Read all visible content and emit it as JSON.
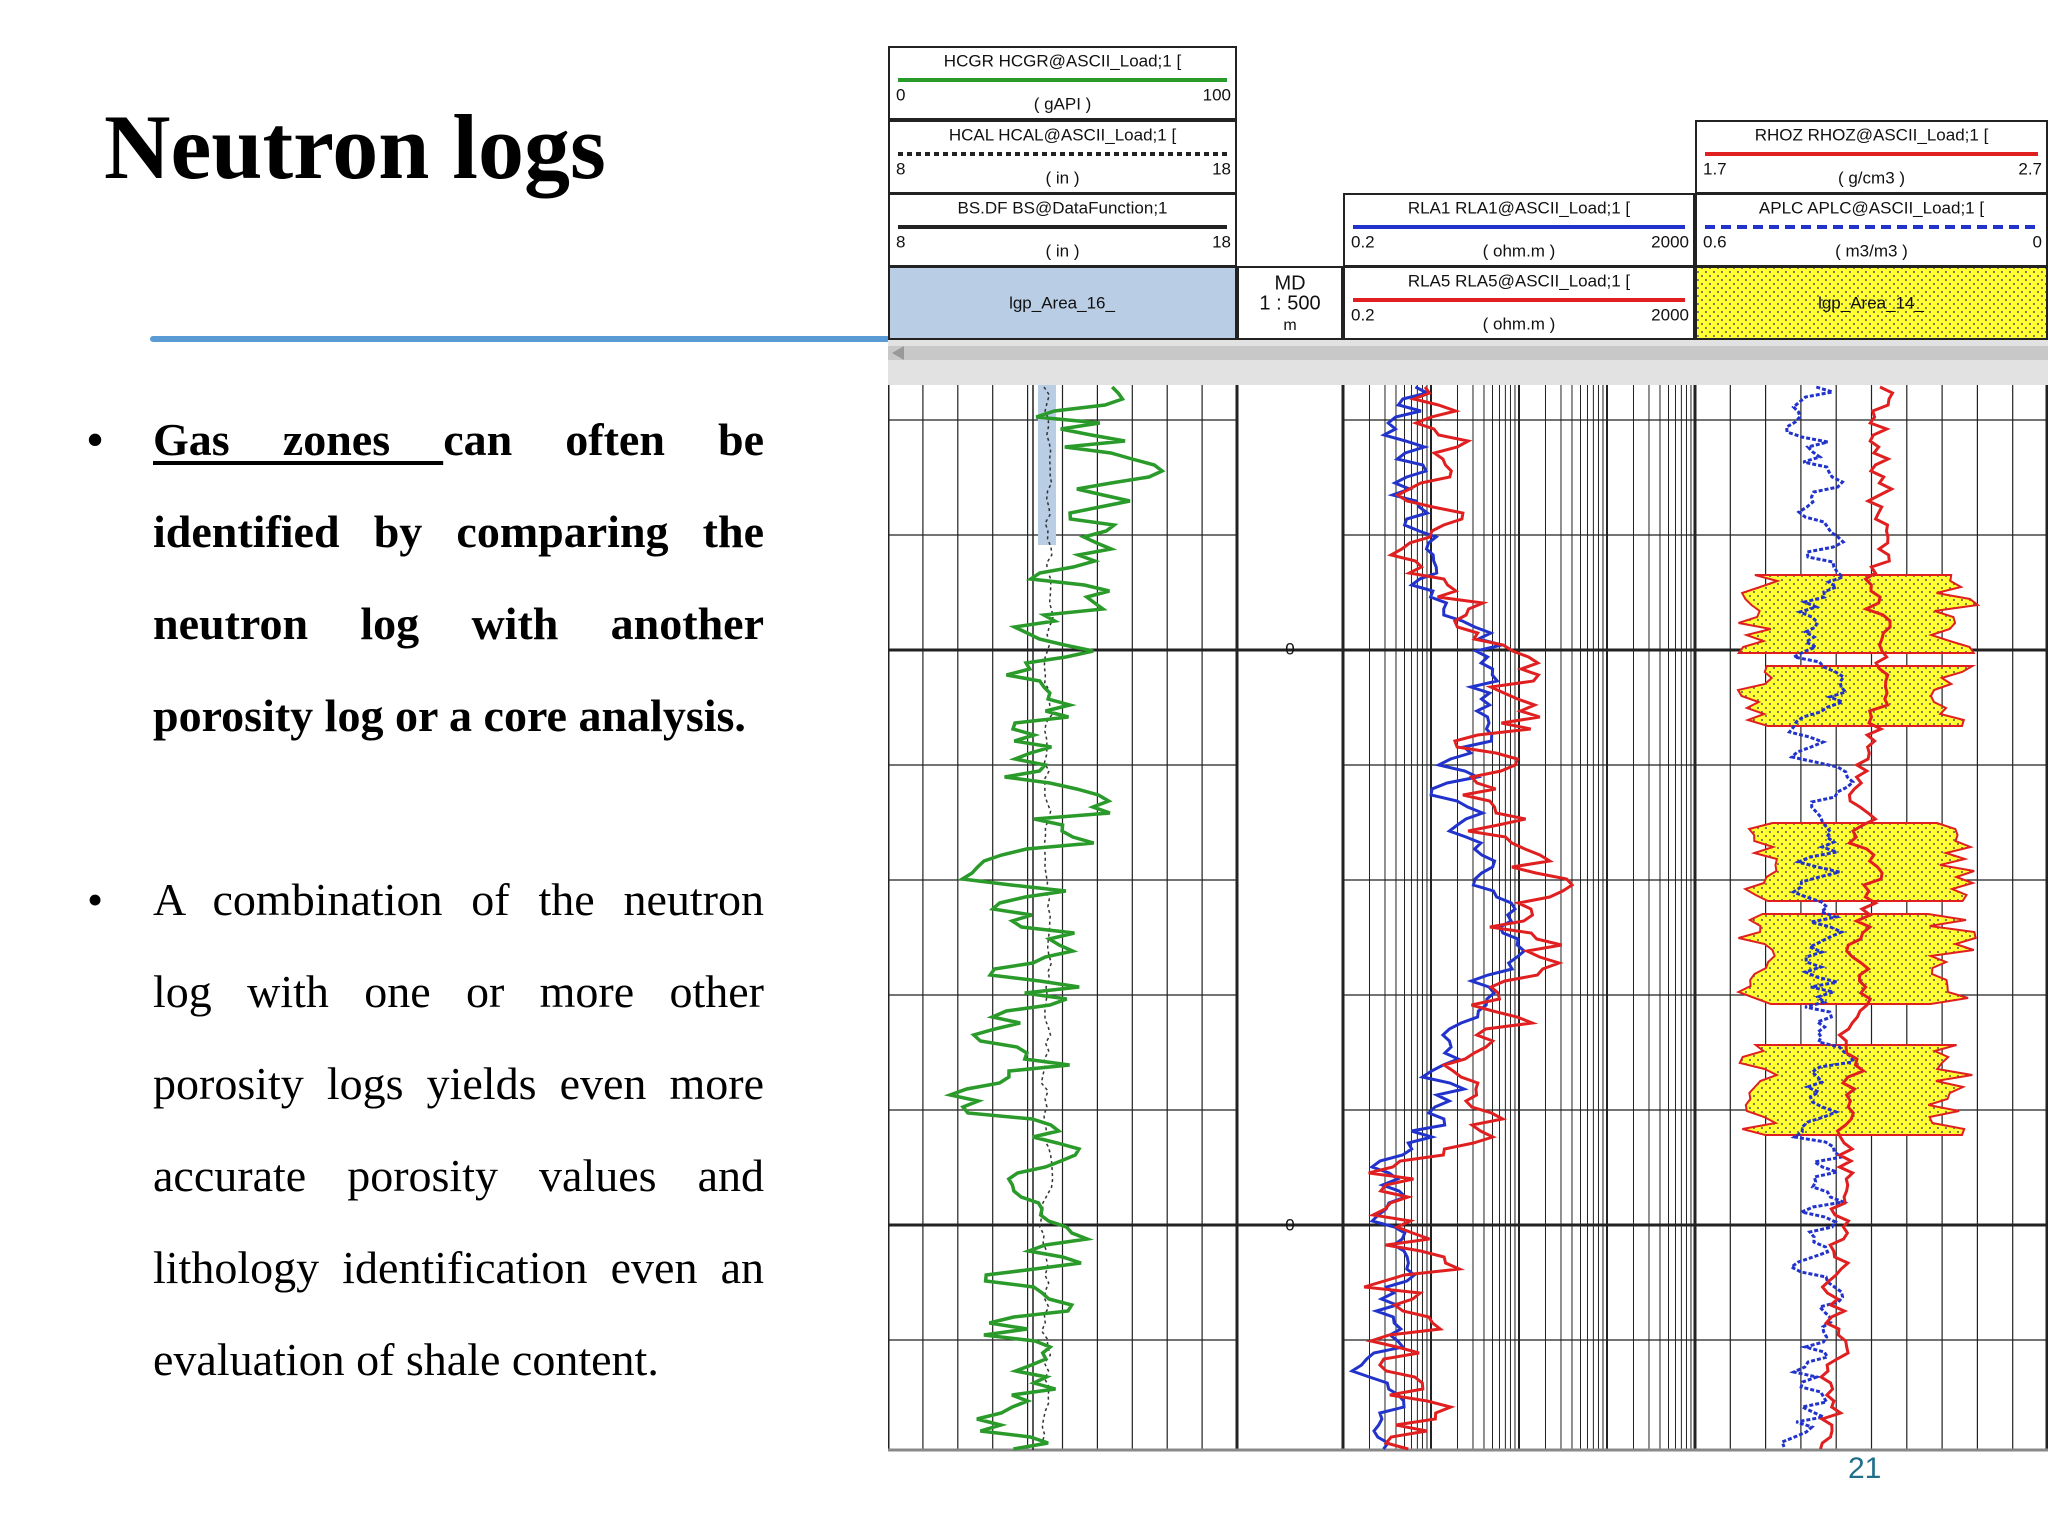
{
  "title": "Neutron logs",
  "bullets": [
    {
      "emphasis": "Gas zones ",
      "text": "can often be identified by comparing the neutron log with another porosity log or a core analysis."
    },
    {
      "text": "A combination of the neutron log with one or more other porosity logs yields even more accurate porosity values and lithology identification even an evaluation of shale content."
    }
  ],
  "page_number": "21",
  "log": {
    "headers": [
      {
        "name": "HCGR HCGR@ASCII_Load;1 [",
        "left": "0",
        "unit": "( gAPI )",
        "right": "100"
      },
      {
        "name": "HCAL HCAL@ASCII_Load;1 [",
        "left": "8",
        "unit": "( in )",
        "right": "18"
      },
      {
        "name": "BS.DF BS@DataFunction;1",
        "left": "8",
        "unit": "( in )",
        "right": "18"
      },
      {
        "name": "RLA1 RLA1@ASCII_Load;1 [",
        "left": "0.2",
        "unit": "( ohm.m )",
        "right": "2000"
      },
      {
        "name": "RLA5 RLA5@ASCII_Load;1 [",
        "left": "0.2",
        "unit": "( ohm.m )",
        "right": "2000"
      },
      {
        "name": "RHOZ RHOZ@ASCII_Load;1 [",
        "left": "1.7",
        "unit": "( g/cm3 )",
        "right": "2.7"
      },
      {
        "name": "APLC APLC@ASCII_Load;1 [",
        "left": "0.6",
        "unit": "( m3/m3 )",
        "right": "0"
      }
    ],
    "areas": [
      "lgp_Area_16_",
      "lgp_Area_14_"
    ],
    "md": [
      "MD",
      "1 : 500",
      "m"
    ],
    "depth_labels": [
      "0",
      "0"
    ]
  }
}
